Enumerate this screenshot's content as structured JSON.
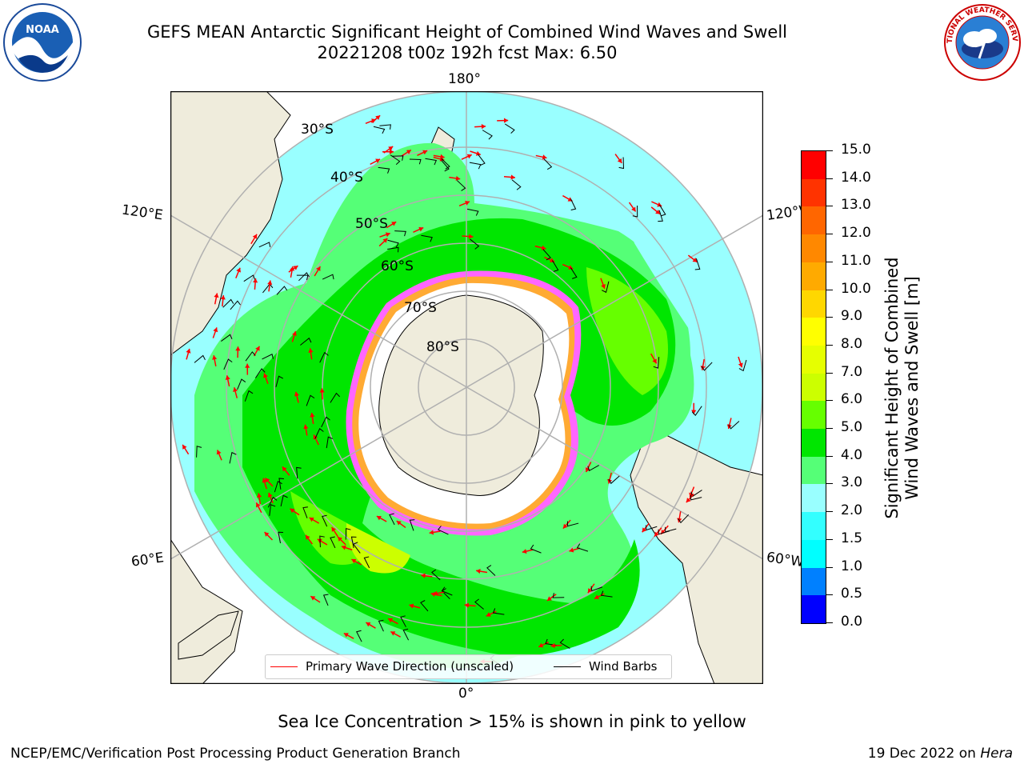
{
  "header": {
    "title_line1": "GEFS MEAN Antarctic Significant Height of Combined Wind Waves and Swell",
    "title_line2": "20221208 t00z 192h fcst   Max: 6.50"
  },
  "logos": {
    "left_text": "NOAA",
    "right_text": "NATIONAL WEATHER SERVICE"
  },
  "map": {
    "lon_labels": {
      "top": "180°",
      "bottom": "0°",
      "left_upper": "120°E",
      "right_upper": "120°W",
      "left_lower": "60°E",
      "right_lower": "60°W"
    },
    "lat_labels": [
      "30°S",
      "40°S",
      "50°S",
      "60°S",
      "70°S",
      "80°S"
    ],
    "colors": {
      "land": "#efecdc",
      "ocean_low": "#99ffff",
      "ice_white": "#ffffff",
      "ice_pink": "#ff66ff",
      "ice_orange": "#ffaa33",
      "grid": "#b0b0b0"
    }
  },
  "legend": {
    "primary_label": "Primary Wave Direction (unscaled)",
    "primary_color": "#ff0000",
    "wind_label": "Wind Barbs",
    "wind_color": "#000000"
  },
  "colorbar": {
    "title_line1": "Significant Height of Combined",
    "title_line2": "Wind Waves and Swell [m]",
    "ticks": [
      "0.0",
      "0.5",
      "1.0",
      "1.5",
      "2.0",
      "3.0",
      "4.0",
      "5.0",
      "6.0",
      "7.0",
      "8.0",
      "9.0",
      "10.0",
      "11.0",
      "12.0",
      "13.0",
      "14.0",
      "15.0"
    ],
    "colors": [
      "#0000ff",
      "#0080ff",
      "#00ffff",
      "#33ffff",
      "#99ffff",
      "#55ff77",
      "#00e600",
      "#66ff00",
      "#ccff00",
      "#e6ff00",
      "#ffff00",
      "#ffd700",
      "#ffaa00",
      "#ff8800",
      "#ff6600",
      "#ff3300",
      "#ff0000"
    ]
  },
  "caption": "Sea Ice Concentration > 15% is shown in pink to yellow",
  "footer": {
    "left": "NCEP/EMC/Verification Post Processing Product Generation Branch",
    "right_date": "19 Dec 2022 on ",
    "right_host": "Hera"
  }
}
